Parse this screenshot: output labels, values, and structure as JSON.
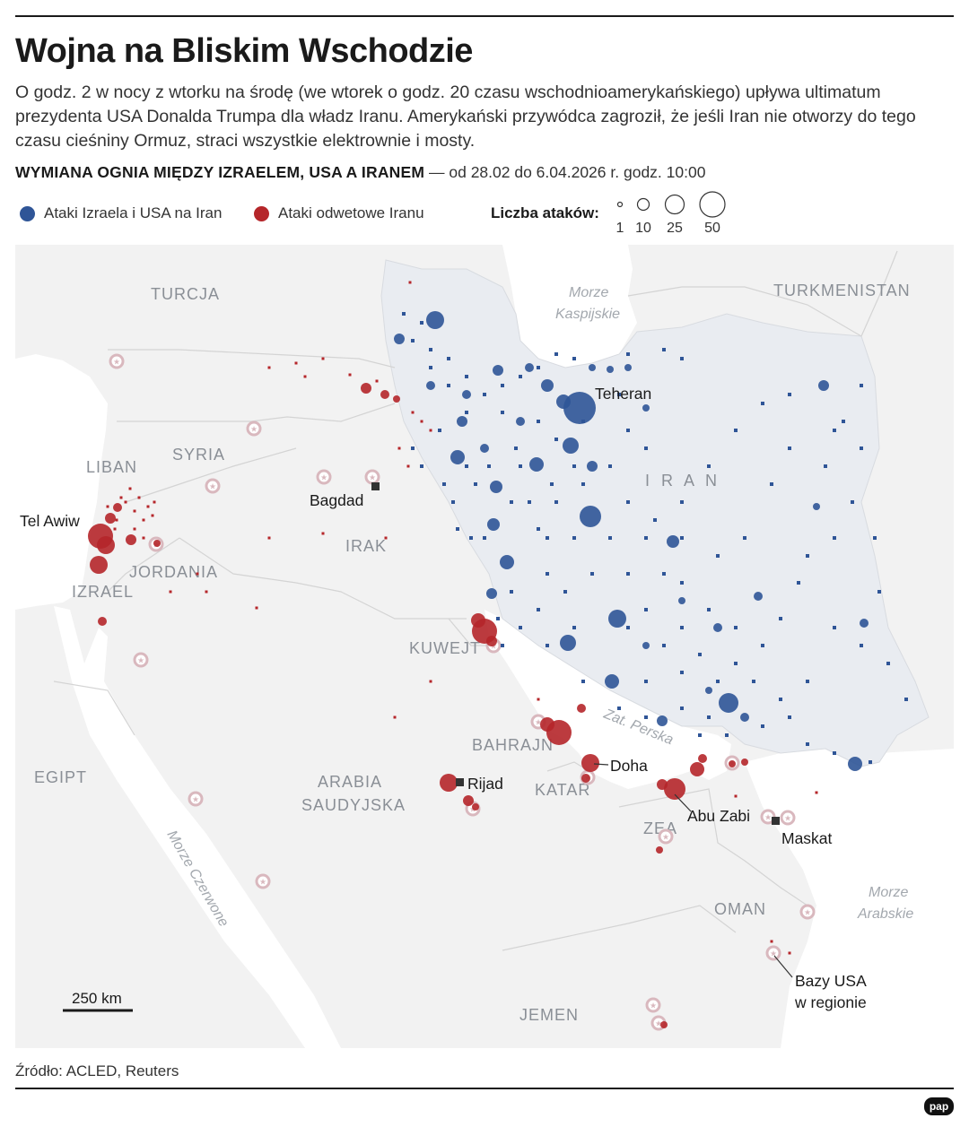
{
  "title": "Wojna na Bliskim Wschodzie",
  "lead": "O godz. 2 w nocy z wtorku na środę (we wtorek o godz. 20 czasu wschodnioamerykańskiego) upływa ultimatum prezydenta USA Donalda Trumpa dla władz Iranu. Amerykański przywódca zagroził, że jeśli Iran nie otworzy do tego czasu cieśniny Ormuz, straci wszystkie elektrownie i mosty.",
  "subheading": {
    "strong": "WYMIANA OGNIA MIĘDZY IZRAELEM, USA A IRANEM",
    "rest": " — od 28.02 do 6.04.2026 r. godz. 10:00"
  },
  "legend": {
    "blue_label": "Ataki Izraela i USA na Iran",
    "red_label": "Ataki odwetowe Iranu",
    "size_label": "Liczba ataków:",
    "sizes": [
      "1",
      "10",
      "25",
      "50"
    ]
  },
  "colors": {
    "blue": "#2f5597",
    "red": "#b5262a",
    "iran_land": "#eef0f3",
    "land": "#f3f3f3",
    "water": "#ffffff",
    "base_marker": "#d9b8be"
  },
  "map": {
    "countries": {
      "turcja": "TURCJA",
      "turkmenistan": "TURKMENISTAN",
      "syria": "SYRIA",
      "liban": "LIBAN",
      "jordania": "JORDANIA",
      "izrael": "IZRAEL",
      "irak": "IRAK",
      "iran": "I R A N",
      "kuwejt": "KUWEJT",
      "bahrajn": "BAHRAJN",
      "katar": "KATAR",
      "zea": "ZEA",
      "oman": "OMAN",
      "arabia1": "ARABIA",
      "arabia2": "SAUDYJSKA",
      "egipt": "EGIPT",
      "jemen": "JEMEN"
    },
    "waters": {
      "caspian1": "Morze",
      "caspian2": "Kaspijskie",
      "gulf": "Zat. Perska",
      "redsea": "Morze Czerwone",
      "arabian1": "Morze",
      "arabian2": "Arabskie"
    },
    "cities": {
      "teheran": "Teheran",
      "bagdad": "Bagdad",
      "telawiw": "Tel Awiw",
      "rijad": "Rijad",
      "doha": "Doha",
      "abuzabi": "Abu Zabi",
      "maskat": "Maskat"
    },
    "bases_label_1": "Bazy USA",
    "bases_label_2": "w regionie",
    "scale": "250 km"
  },
  "source": "Źródło: ACLED, Reuters",
  "logo": "pap"
}
